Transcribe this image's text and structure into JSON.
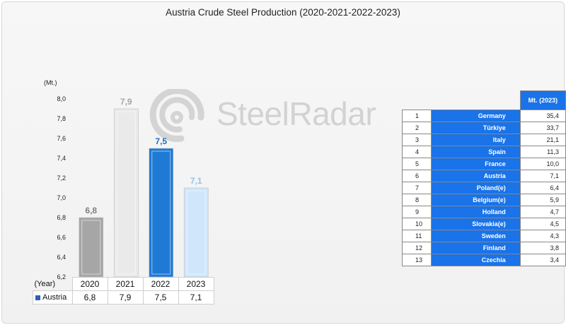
{
  "title": "Austria Crude Steel Production (2020-2021-2022-2023)",
  "watermark": {
    "text": "SteelRadar"
  },
  "chart_data": {
    "type": "bar",
    "title": "Austria Crude Steel Production (2020-2021-2022-2023)",
    "unit_label": "(Mt.)",
    "categories": [
      "2020",
      "2021",
      "2022",
      "2023"
    ],
    "series": [
      {
        "name": "Austria",
        "values": [
          6.8,
          7.9,
          7.5,
          7.1
        ],
        "value_labels": [
          "6,8",
          "7,9",
          "7,5",
          "7,1"
        ],
        "colors": [
          "#a6a6a6",
          "#eaeaea",
          "#1f7ad6",
          "#cfe6fb"
        ],
        "label_colors": [
          "#7f7f7f",
          "#a6a6a6",
          "#1f6fbf",
          "#8fc3ee"
        ]
      }
    ],
    "ylim": [
      6.2,
      8.0
    ],
    "yticks": [
      6.2,
      6.4,
      6.6,
      6.8,
      7.0,
      7.2,
      7.4,
      7.6,
      7.8,
      8.0
    ],
    "ytick_labels": [
      "6,2",
      "6,4",
      "6,6",
      "6,8",
      "7,0",
      "7,2",
      "7,4",
      "7,6",
      "7,8",
      "8,0"
    ],
    "grid": false,
    "legend": "data-table"
  },
  "data_table": {
    "header_label": "(Year)",
    "row_label": "Austria",
    "years": [
      "2020",
      "2021",
      "2022",
      "2023"
    ],
    "values": [
      "6,8",
      "7,9",
      "7,5",
      "7,1"
    ]
  },
  "ranking": {
    "header": "Mt. (2023)",
    "rows": [
      {
        "rank": "1",
        "country": "Germany",
        "value": "35,4"
      },
      {
        "rank": "2",
        "country": "Türkiye",
        "value": "33,7"
      },
      {
        "rank": "3",
        "country": "Italy",
        "value": "21,1"
      },
      {
        "rank": "4",
        "country": "Spain",
        "value": "11,3"
      },
      {
        "rank": "5",
        "country": "France",
        "value": "10,0"
      },
      {
        "rank": "6",
        "country": "Austria",
        "value": "7,1"
      },
      {
        "rank": "7",
        "country": "Poland(e)",
        "value": "6,4"
      },
      {
        "rank": "8",
        "country": "Belgium(e)",
        "value": "5,9"
      },
      {
        "rank": "9",
        "country": "Holland",
        "value": "4,7"
      },
      {
        "rank": "10",
        "country": "Slovakia(e)",
        "value": "4,5"
      },
      {
        "rank": "11",
        "country": "Sweden",
        "value": "4,3"
      },
      {
        "rank": "12",
        "country": "Finland",
        "value": "3,8"
      },
      {
        "rank": "13",
        "country": "Czechia",
        "value": "3,4"
      }
    ]
  }
}
